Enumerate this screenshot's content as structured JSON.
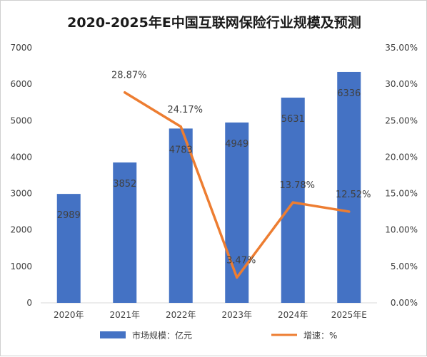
{
  "chart_data": {
    "type": "bar",
    "title": "2020-2025年E中国互联网保险行业规模及预测",
    "categories": [
      "2020年",
      "2021年",
      "2022年",
      "2023年",
      "2024年",
      "2025年E"
    ],
    "series": [
      {
        "name": "市场规模：亿元",
        "type": "bar",
        "axis": "left",
        "values": [
          2989,
          3852,
          4783,
          4949,
          5631,
          6336
        ],
        "labels": [
          "2989",
          "3852",
          "4783",
          "4949",
          "5631",
          "6336"
        ],
        "color": "#4472C4"
      },
      {
        "name": "增速：%",
        "type": "line",
        "axis": "right",
        "values": [
          null,
          28.87,
          24.17,
          3.47,
          13.78,
          12.52
        ],
        "labels": [
          "",
          "28.87%",
          "24.17%",
          "3.47%",
          "13.78%",
          "12.52%"
        ],
        "color": "#ED7D31"
      }
    ],
    "y_left": {
      "min": 0,
      "max": 7000,
      "ticks": [
        "0",
        "1000",
        "2000",
        "3000",
        "4000",
        "5000",
        "6000",
        "7000"
      ]
    },
    "y_right": {
      "min": 0,
      "max": 35,
      "ticks": [
        "0.00%",
        "5.00%",
        "10.00%",
        "15.00%",
        "20.00%",
        "25.00%",
        "30.00%",
        "35.00%"
      ]
    },
    "grid": false,
    "legend_position": "bottom"
  }
}
